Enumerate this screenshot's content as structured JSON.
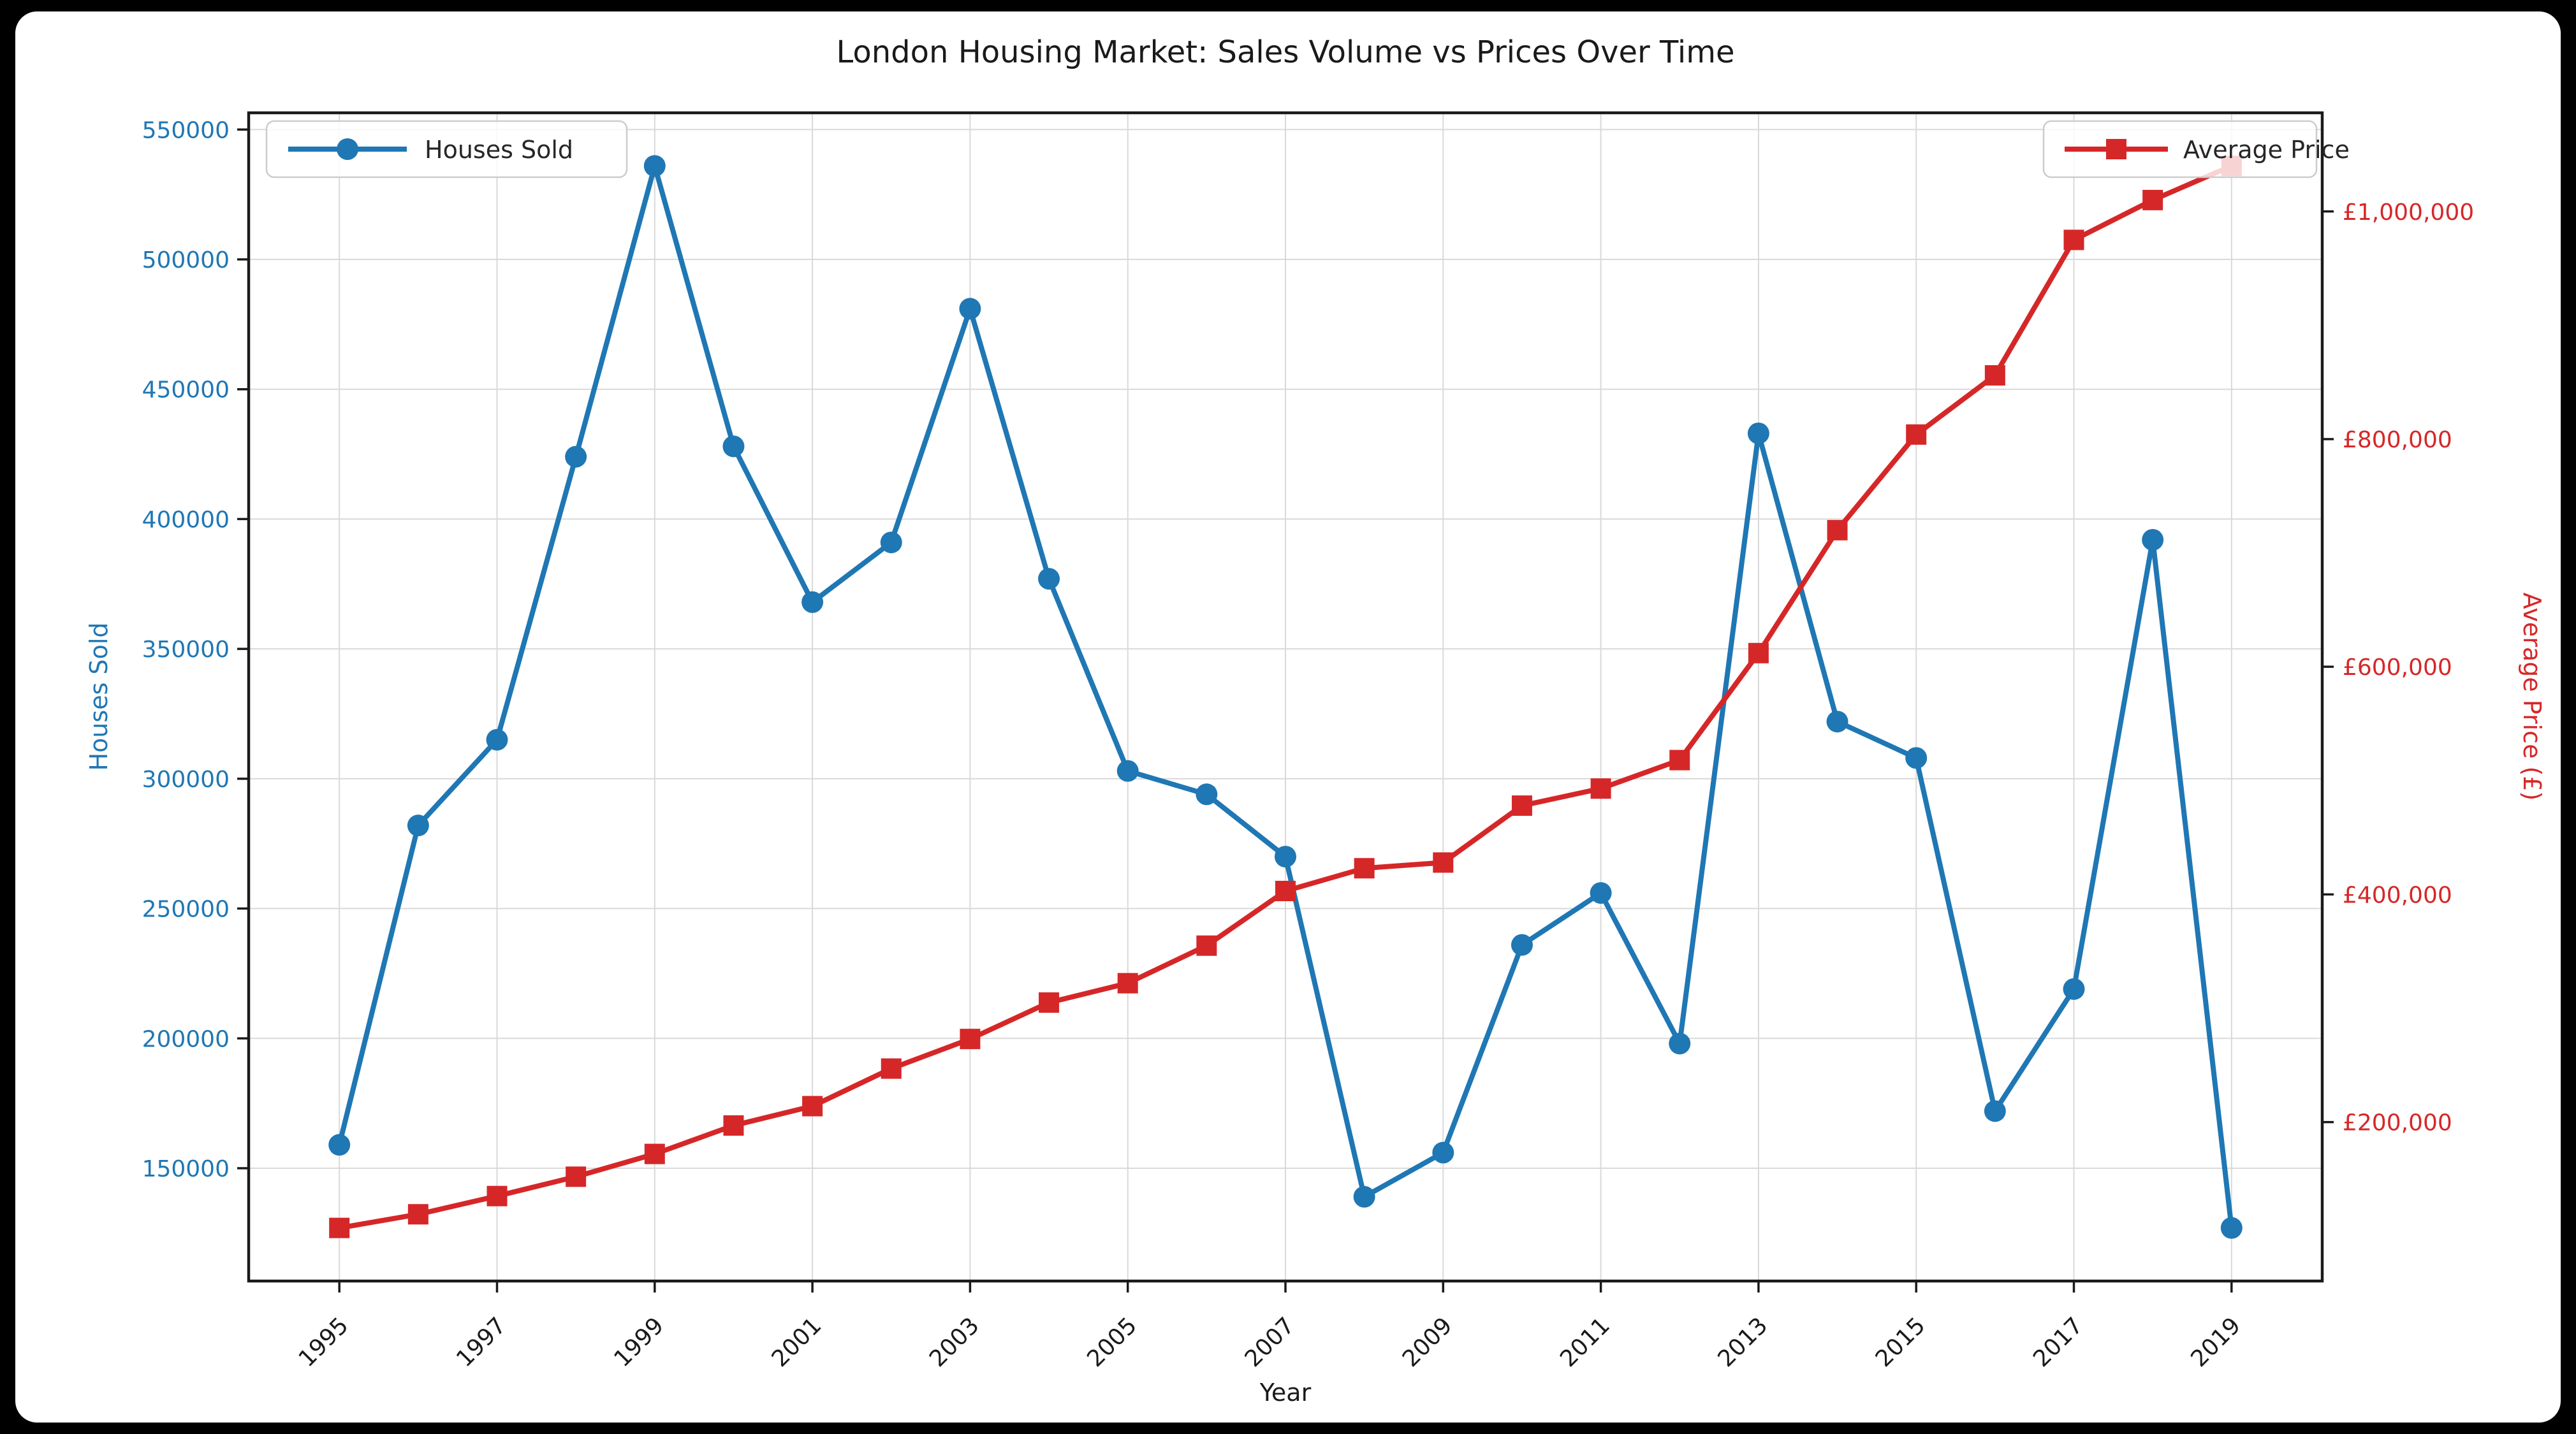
{
  "figure": {
    "background": "#000000",
    "canvas_color": "#ffffff",
    "title": "London Housing Market: Sales Volume vs Prices Over Time"
  },
  "chart_data": {
    "type": "line",
    "title": "London Housing Market: Sales Volume vs Prices Over Time",
    "xlabel": "Year",
    "ylabel_left": "Houses Sold",
    "ylabel_right": "Average Price (£)",
    "grid": true,
    "grid_color": "#d9d9d9",
    "spine_color": "#1a1a1a",
    "x": [
      1995,
      1996,
      1997,
      1998,
      1999,
      2000,
      2001,
      2002,
      2003,
      2004,
      2005,
      2006,
      2007,
      2008,
      2009,
      2010,
      2011,
      2012,
      2013,
      2014,
      2015,
      2016,
      2017,
      2018,
      2019
    ],
    "series": [
      {
        "name": "Houses Sold",
        "axis": "left",
        "color": "#1f77b4",
        "marker": "circle",
        "values": [
          159000,
          282000,
          315000,
          424000,
          536000,
          428000,
          368000,
          391000,
          481000,
          377000,
          303000,
          294000,
          270000,
          139000,
          156000,
          236000,
          256000,
          198000,
          433000,
          322000,
          308000,
          172000,
          219000,
          392000,
          127000
        ]
      },
      {
        "name": "Average Price",
        "axis": "right",
        "color": "#d62728",
        "marker": "square",
        "values": [
          107000,
          119000,
          135000,
          152000,
          172000,
          197000,
          214000,
          247000,
          273000,
          305000,
          322000,
          355000,
          403000,
          423000,
          428000,
          478000,
          493000,
          518000,
          612000,
          720000,
          804000,
          856000,
          975000,
          1010000,
          1040000
        ]
      }
    ],
    "xlim": [
      1993.85,
      2020.15
    ],
    "x_ticks": [
      1995,
      1997,
      1999,
      2001,
      2003,
      2005,
      2007,
      2009,
      2011,
      2013,
      2015,
      2017,
      2019
    ],
    "x_tick_labels": [
      "1995",
      "1997",
      "1999",
      "2001",
      "2003",
      "2005",
      "2007",
      "2009",
      "2011",
      "2013",
      "2015",
      "2017",
      "2019"
    ],
    "left_axis": {
      "color": "#1f77b4",
      "range": [
        106550,
        556450
      ],
      "ticks": [
        150000,
        200000,
        250000,
        300000,
        350000,
        400000,
        450000,
        500000,
        550000
      ],
      "tick_labels": [
        "150000",
        "200000",
        "250000",
        "300000",
        "350000",
        "400000",
        "450000",
        "500000",
        "550000"
      ]
    },
    "right_axis": {
      "color": "#d62728",
      "range": [
        60350,
        1086650
      ],
      "ticks": [
        200000,
        400000,
        600000,
        800000,
        1000000
      ],
      "tick_labels": [
        "£200,000",
        "£400,000",
        "£600,000",
        "£800,000",
        "£1,000,000"
      ]
    },
    "legend_left": {
      "label": "Houses Sold"
    },
    "legend_right": {
      "label": "Average Price"
    }
  }
}
